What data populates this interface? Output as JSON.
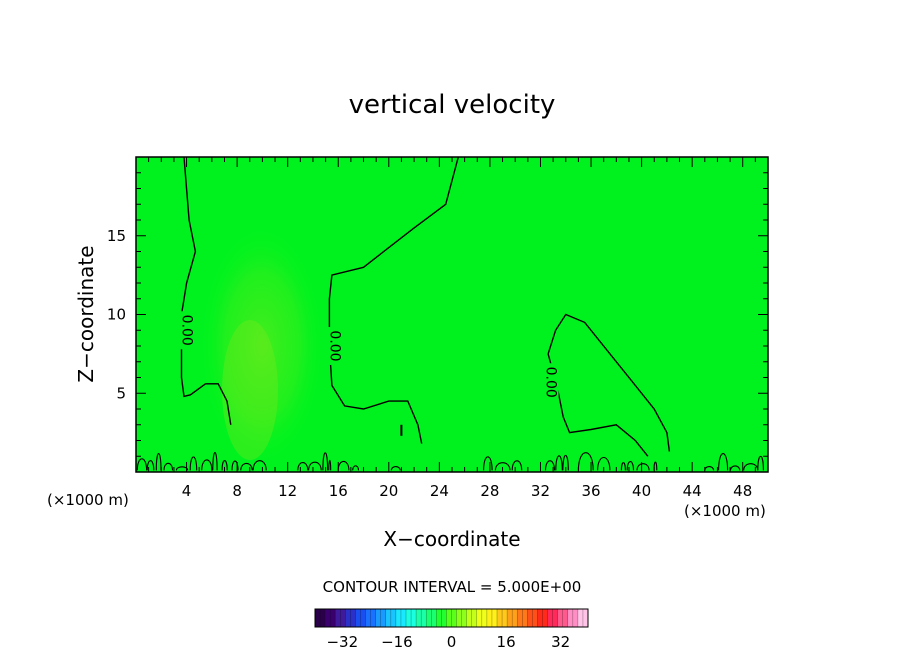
{
  "chart_data": {
    "type": "heatmap",
    "title": "vertical velocity",
    "xlabel": "X−coordinate",
    "ylabel": "Z−coordinate",
    "x_unit_left": "(×1000 m)",
    "x_unit_right": "(×1000 m)",
    "xlim": [
      0,
      50
    ],
    "ylim": [
      0,
      20
    ],
    "xticks": [
      4,
      8,
      12,
      16,
      20,
      24,
      28,
      32,
      36,
      40,
      44,
      48
    ],
    "yticks": [
      5,
      10,
      15
    ],
    "contour_interval_text": "CONTOUR INTERVAL = 5.000E+00",
    "contour_labels": [
      {
        "text": "0.00",
        "x": 4,
        "y": 9
      },
      {
        "text": "0.00",
        "x": 15.7,
        "y": 8
      },
      {
        "text": "0.00",
        "x": 32.8,
        "y": 5.7
      }
    ],
    "zero_contours": [
      {
        "name": "left",
        "points": [
          [
            3.8,
            20
          ],
          [
            4.2,
            16
          ],
          [
            4.7,
            14
          ],
          [
            4.0,
            12
          ],
          [
            3.6,
            10
          ],
          [
            3.6,
            8
          ],
          [
            3.6,
            6
          ],
          [
            3.8,
            4.8
          ],
          [
            4.3,
            4.9
          ],
          [
            5.5,
            5.6
          ],
          [
            6.5,
            5.6
          ],
          [
            7.2,
            4.5
          ],
          [
            7.5,
            3
          ]
        ]
      },
      {
        "name": "center",
        "points": [
          [
            25.5,
            20
          ],
          [
            24.5,
            17
          ],
          [
            22,
            15.5
          ],
          [
            18,
            13
          ],
          [
            15.5,
            12.5
          ],
          [
            15.3,
            11
          ],
          [
            15.3,
            8
          ],
          [
            15.5,
            5.5
          ],
          [
            16.5,
            4.2
          ],
          [
            18,
            4
          ],
          [
            20,
            4.5
          ],
          [
            21.5,
            4.5
          ],
          [
            22.3,
            3
          ],
          [
            22.6,
            1.8
          ]
        ]
      },
      {
        "name": "right",
        "points": [
          [
            32.6,
            7.5
          ],
          [
            33.2,
            9
          ],
          [
            34,
            10
          ],
          [
            35.5,
            9.5
          ],
          [
            37.5,
            7.5
          ],
          [
            39.5,
            5.5
          ],
          [
            41,
            4
          ],
          [
            42,
            2.5
          ],
          [
            42.2,
            1.3
          ]
        ]
      },
      {
        "name": "right-inner",
        "points": [
          [
            32.6,
            7.5
          ],
          [
            33.3,
            5.5
          ],
          [
            33.8,
            3.5
          ],
          [
            34.3,
            2.5
          ],
          [
            36,
            2.7
          ],
          [
            38,
            3
          ],
          [
            39.5,
            2
          ],
          [
            40.5,
            1
          ]
        ]
      }
    ],
    "colorbar": {
      "ticks": [
        -32,
        -16,
        0,
        16,
        32
      ],
      "range": [
        -40,
        40
      ],
      "colors": [
        "#2a004a",
        "#3a006e",
        "#3f1a9a",
        "#2a30c8",
        "#1a4ef0",
        "#1a70ff",
        "#1a9aff",
        "#1ac4ff",
        "#1ae8ff",
        "#1affe0",
        "#1affa8",
        "#1aff70",
        "#22ff30",
        "#5aff1a",
        "#8eff1a",
        "#c4ff1a",
        "#f0ff1a",
        "#fff01a",
        "#ffc81a",
        "#ffa01a",
        "#ff781a",
        "#ff501a",
        "#ff2a1a",
        "#ff2a5a",
        "#ff5a8e",
        "#ff8ec4",
        "#ffc4e8"
      ]
    },
    "background_color": "#00f21e",
    "field_highlight_color": "#44f21e",
    "grid": false,
    "legend": "bottom"
  }
}
